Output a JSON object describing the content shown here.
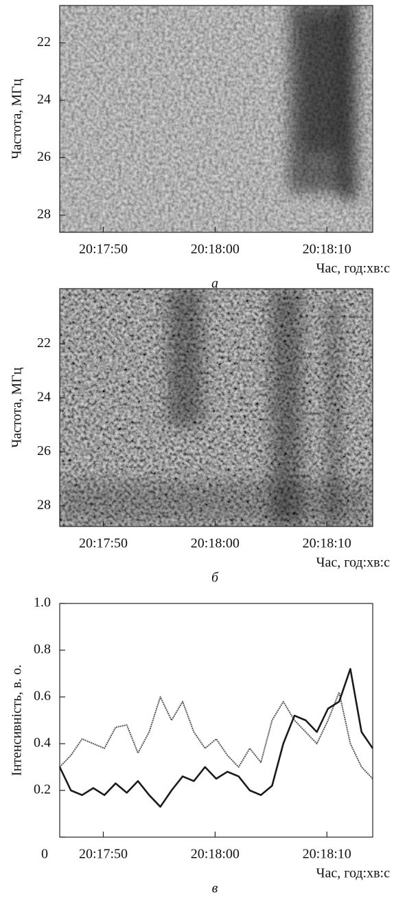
{
  "chart_data": [
    {
      "type": "spectrogram",
      "caption": "а",
      "y_label": "Частота, МГц",
      "x_label": "Час, год:хв:с",
      "xlim": [
        73066.1,
        73094.1
      ],
      "xticks": [
        {
          "value": 73070,
          "label": "20:17:50"
        },
        {
          "value": 73080,
          "label": "20:18:00"
        },
        {
          "value": 73090,
          "label": "20:18:10"
        }
      ],
      "ylim": [
        28.6,
        20.7
      ],
      "yticks": [
        22,
        24,
        26,
        28
      ]
    },
    {
      "type": "spectrogram",
      "caption": "б",
      "y_label": "Частота, МГц",
      "x_label": "Час, год:хв:с",
      "xlim": [
        73066.1,
        73094.1
      ],
      "xticks": [
        {
          "value": 73070,
          "label": "20:17:50"
        },
        {
          "value": 73080,
          "label": "20:18:00"
        },
        {
          "value": 73090,
          "label": "20:18:10"
        }
      ],
      "ylim": [
        28.76,
        19.96
      ],
      "yticks": [
        22,
        24,
        26,
        28
      ]
    },
    {
      "type": "line",
      "caption": "в",
      "y_label": "Інтенсивність, в. о.",
      "x_label": "Час, год:хв:с",
      "xlim": [
        73066.1,
        73094.1
      ],
      "xticks": [
        {
          "value": 73070,
          "label": "20:17:50"
        },
        {
          "value": 73080,
          "label": "20:18:00"
        },
        {
          "value": 73090,
          "label": "20:18:10"
        }
      ],
      "ylim": [
        0,
        1
      ],
      "yticks": [
        0,
        0.2,
        0.4,
        0.6,
        0.8,
        {
          "value": 1,
          "label": "1.0"
        }
      ],
      "x": [
        73066.1,
        73067.1,
        73068.1,
        73069.1,
        73070.1,
        73071.1,
        73072.1,
        73073.1,
        73074.1,
        73075.1,
        73076.1,
        73077.1,
        73078.1,
        73079.1,
        73080.1,
        73081.1,
        73082.1,
        73083.1,
        73084.1,
        73085.1,
        73086.1,
        73087.1,
        73088.1,
        73089.1,
        73090.1,
        73091.1,
        73092.1,
        73093.1,
        73094.1
      ],
      "series": [
        {
          "color": "#555555",
          "style": "dashed",
          "values": [
            0.3,
            0.35,
            0.42,
            0.4,
            0.38,
            0.47,
            0.48,
            0.36,
            0.45,
            0.6,
            0.5,
            0.58,
            0.45,
            0.38,
            0.42,
            0.35,
            0.3,
            0.38,
            0.32,
            0.5,
            0.58,
            0.5,
            0.45,
            0.4,
            0.5,
            0.62,
            0.4,
            0.3,
            0.25
          ]
        },
        {
          "color": "#1a1a1a",
          "style": "solid",
          "values": [
            0.3,
            0.2,
            0.18,
            0.21,
            0.18,
            0.23,
            0.19,
            0.24,
            0.18,
            0.13,
            0.2,
            0.26,
            0.24,
            0.3,
            0.25,
            0.28,
            0.26,
            0.2,
            0.18,
            0.22,
            0.4,
            0.52,
            0.5,
            0.45,
            0.55,
            0.58,
            0.72,
            0.45,
            0.38
          ]
        }
      ]
    }
  ]
}
